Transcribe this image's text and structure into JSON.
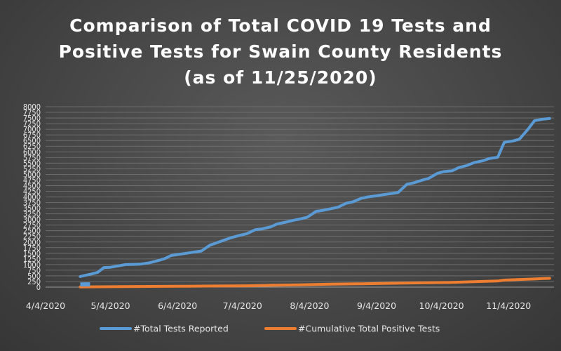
{
  "chart_data": {
    "type": "line",
    "title_lines": [
      "Comparison of Total COVID 19 Tests and",
      "Positive Tests for Swain County Residents",
      "(as of 11/25/2020)"
    ],
    "ylim": [
      0,
      8000
    ],
    "y_ticks": [
      0,
      250,
      500,
      750,
      1000,
      1250,
      1500,
      1750,
      2000,
      2250,
      2500,
      2750,
      3000,
      3250,
      3500,
      3750,
      4000,
      4250,
      4500,
      4750,
      5000,
      5250,
      5500,
      5750,
      6000,
      6250,
      6500,
      6750,
      7000,
      7250,
      7500,
      7750,
      8000
    ],
    "xlim": [
      "2020-04-04",
      "2020-11-25"
    ],
    "x_ticks": [
      {
        "date": "2020-04-04",
        "label": "4/4/2020"
      },
      {
        "date": "2020-05-04",
        "label": "5/4/2020"
      },
      {
        "date": "2020-06-04",
        "label": "6/4/2020"
      },
      {
        "date": "2020-07-04",
        "label": "7/4/2020"
      },
      {
        "date": "2020-08-04",
        "label": "8/4/2020"
      },
      {
        "date": "2020-09-04",
        "label": "9/4/2020"
      },
      {
        "date": "2020-10-04",
        "label": "10/4/2020"
      },
      {
        "date": "2020-11-04",
        "label": "11/4/2020"
      }
    ],
    "grid": true,
    "legend_position": "bottom",
    "series": [
      {
        "name": "#Total Tests Reported",
        "color": "#5b9bd5",
        "points": [
          [
            "2020-04-20",
            470
          ],
          [
            "2020-04-25",
            580
          ],
          [
            "2020-04-28",
            650
          ],
          [
            "2020-05-01",
            870
          ],
          [
            "2020-05-04",
            880
          ],
          [
            "2020-05-08",
            950
          ],
          [
            "2020-05-11",
            1000
          ],
          [
            "2020-05-15",
            1010
          ],
          [
            "2020-05-18",
            1020
          ],
          [
            "2020-05-22",
            1080
          ],
          [
            "2020-05-25",
            1150
          ],
          [
            "2020-05-29",
            1260
          ],
          [
            "2020-06-01",
            1400
          ],
          [
            "2020-06-05",
            1460
          ],
          [
            "2020-06-08",
            1500
          ],
          [
            "2020-06-12",
            1560
          ],
          [
            "2020-06-15",
            1600
          ],
          [
            "2020-06-19",
            1860
          ],
          [
            "2020-06-22",
            1960
          ],
          [
            "2020-06-26",
            2100
          ],
          [
            "2020-06-29",
            2200
          ],
          [
            "2020-07-03",
            2300
          ],
          [
            "2020-07-06",
            2370
          ],
          [
            "2020-07-10",
            2550
          ],
          [
            "2020-07-13",
            2580
          ],
          [
            "2020-07-17",
            2670
          ],
          [
            "2020-07-20",
            2800
          ],
          [
            "2020-07-24",
            2880
          ],
          [
            "2020-07-27",
            2950
          ],
          [
            "2020-07-31",
            3030
          ],
          [
            "2020-08-03",
            3100
          ],
          [
            "2020-08-07",
            3360
          ],
          [
            "2020-08-10",
            3400
          ],
          [
            "2020-08-14",
            3480
          ],
          [
            "2020-08-17",
            3540
          ],
          [
            "2020-08-21",
            3720
          ],
          [
            "2020-08-24",
            3780
          ],
          [
            "2020-08-28",
            3940
          ],
          [
            "2020-08-31",
            4000
          ],
          [
            "2020-09-04",
            4050
          ],
          [
            "2020-09-07",
            4100
          ],
          [
            "2020-09-11",
            4150
          ],
          [
            "2020-09-14",
            4200
          ],
          [
            "2020-09-18",
            4560
          ],
          [
            "2020-09-21",
            4620
          ],
          [
            "2020-09-25",
            4740
          ],
          [
            "2020-09-28",
            4820
          ],
          [
            "2020-10-02",
            5040
          ],
          [
            "2020-10-05",
            5120
          ],
          [
            "2020-10-09",
            5160
          ],
          [
            "2020-10-12",
            5300
          ],
          [
            "2020-10-16",
            5400
          ],
          [
            "2020-10-19",
            5520
          ],
          [
            "2020-10-23",
            5600
          ],
          [
            "2020-10-26",
            5700
          ],
          [
            "2020-10-30",
            5760
          ],
          [
            "2020-11-02",
            6420
          ],
          [
            "2020-11-06",
            6480
          ],
          [
            "2020-11-09",
            6560
          ],
          [
            "2020-11-13",
            7000
          ],
          [
            "2020-11-16",
            7380
          ],
          [
            "2020-11-20",
            7450
          ],
          [
            "2020-11-23",
            7480
          ]
        ]
      },
      {
        "name": "#Cumulative Total Positive Tests",
        "color": "#ed7d31",
        "points": [
          [
            "2020-04-20",
            10
          ],
          [
            "2020-05-04",
            20
          ],
          [
            "2020-05-22",
            30
          ],
          [
            "2020-06-08",
            40
          ],
          [
            "2020-06-22",
            50
          ],
          [
            "2020-07-06",
            60
          ],
          [
            "2020-07-17",
            80
          ],
          [
            "2020-07-31",
            100
          ],
          [
            "2020-08-14",
            130
          ],
          [
            "2020-08-28",
            150
          ],
          [
            "2020-09-11",
            170
          ],
          [
            "2020-09-25",
            190
          ],
          [
            "2020-10-09",
            210
          ],
          [
            "2020-10-19",
            240
          ],
          [
            "2020-10-30",
            270
          ],
          [
            "2020-11-02",
            310
          ],
          [
            "2020-11-09",
            340
          ],
          [
            "2020-11-16",
            360
          ],
          [
            "2020-11-20",
            380
          ],
          [
            "2020-11-23",
            390
          ]
        ]
      }
    ],
    "marker": {
      "date": "2020-04-21",
      "value": 120,
      "color": "#5b9bd5"
    }
  }
}
